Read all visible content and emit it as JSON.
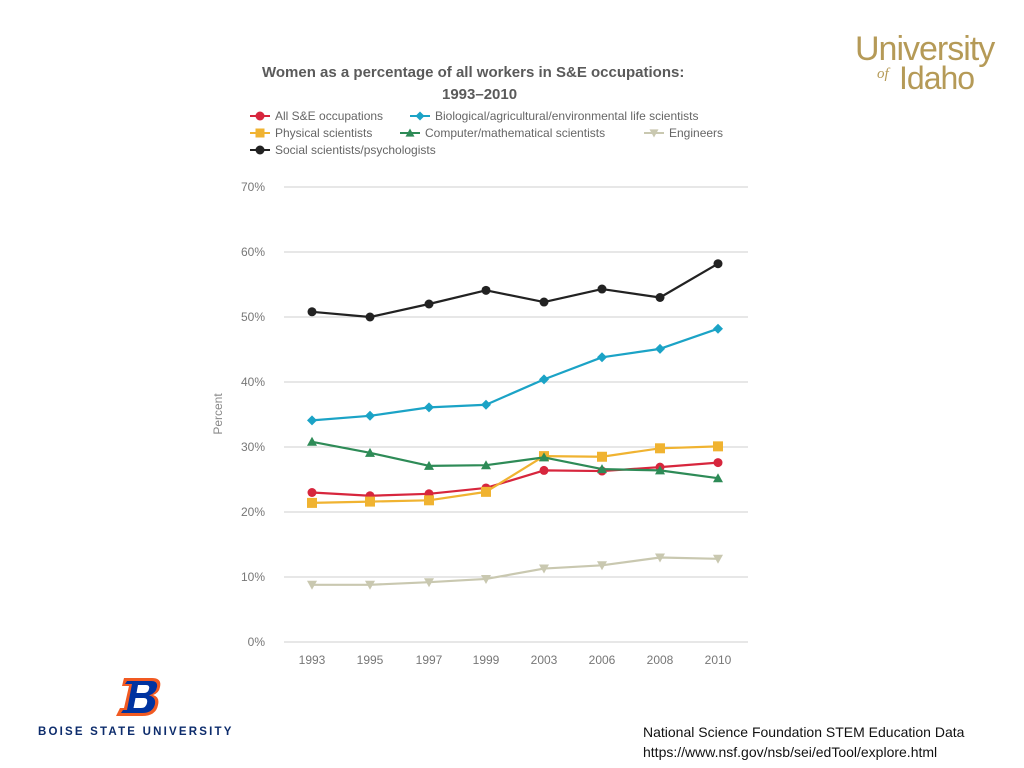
{
  "logos": {
    "uidaho": {
      "line1": "University",
      "of": "of",
      "line2": "Idaho",
      "color": "#b59a57"
    },
    "boise": {
      "name": "BOISE STATE UNIVERSITY",
      "color": "#0d2c6c",
      "mark_color": "#0033a0",
      "mark_outline": "#f15a22",
      "mark_letter": "B"
    }
  },
  "source": {
    "line1": "National Science Foundation STEM Education Data",
    "line2": "https://www.nsf.gov/nsb/sei/edTool/explore.html"
  },
  "chart_data": {
    "type": "line",
    "title": "Women as a percentage of all workers in S&E occupations:",
    "subtitle": "1993–2010",
    "xlabel": "",
    "ylabel": "Percent",
    "categories": [
      "1993",
      "1995",
      "1997",
      "1999",
      "2003",
      "2006",
      "2008",
      "2010"
    ],
    "ylim": [
      0,
      70
    ],
    "yticks": [
      0,
      10,
      20,
      30,
      40,
      50,
      60,
      70
    ],
    "ytick_labels": [
      "0%",
      "10%",
      "20%",
      "30%",
      "40%",
      "50%",
      "60%",
      "70%"
    ],
    "grid": true,
    "legend_position": "top",
    "series": [
      {
        "name": "All S&E occupations",
        "color": "#d7263d",
        "marker": "circle",
        "values": [
          23.0,
          22.5,
          22.8,
          23.7,
          26.4,
          26.3,
          26.9,
          27.6
        ]
      },
      {
        "name": "Biological/agricultural/environmental life scientists",
        "color": "#1ba3c6",
        "marker": "diamond",
        "values": [
          34.1,
          34.8,
          36.1,
          36.5,
          40.4,
          43.8,
          45.1,
          48.2
        ]
      },
      {
        "name": "Physical scientists",
        "color": "#f0b331",
        "marker": "square",
        "values": [
          21.4,
          21.6,
          21.8,
          23.1,
          28.6,
          28.5,
          29.8,
          30.1
        ]
      },
      {
        "name": "Computer/mathematical scientists",
        "color": "#2e8b57",
        "marker": "triangle-up",
        "values": [
          30.8,
          29.1,
          27.1,
          27.2,
          28.4,
          26.6,
          26.4,
          25.2
        ]
      },
      {
        "name": "Engineers",
        "color": "#c9c8b0",
        "marker": "triangle-down",
        "values": [
          8.8,
          8.8,
          9.2,
          9.7,
          11.3,
          11.8,
          13.0,
          12.8
        ]
      },
      {
        "name": "Social scientists/psychologists",
        "color": "#222222",
        "marker": "circle",
        "values": [
          50.8,
          50.0,
          52.0,
          54.1,
          52.3,
          54.3,
          53.0,
          58.2
        ]
      }
    ]
  }
}
